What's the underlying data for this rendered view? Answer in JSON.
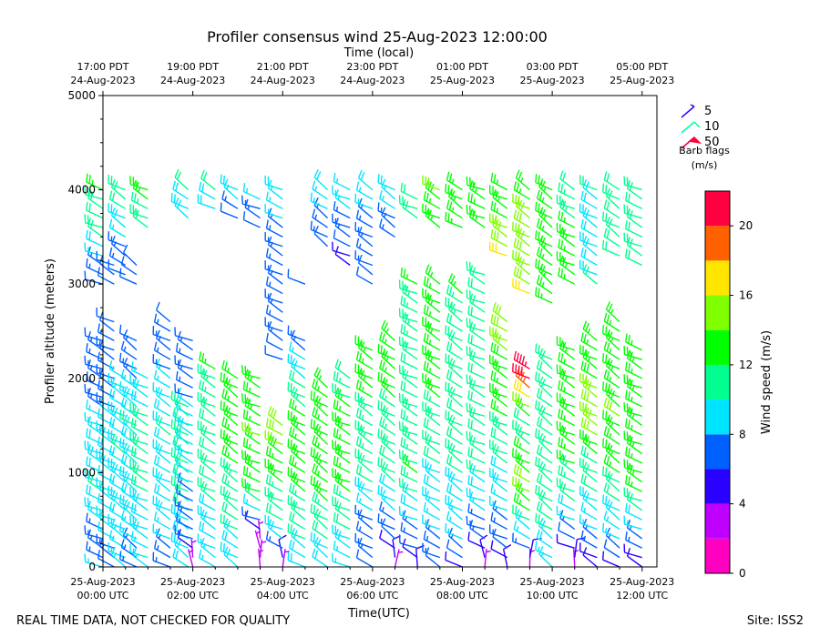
{
  "chart_data": {
    "type": "barbs",
    "title": "Profiler consensus wind 25-Aug-2023 12:00:00",
    "top_axis_label": "Time (local)",
    "xlabel": "Time(UTC)",
    "ylabel": "Profiler altitude (meters)",
    "ylim": [
      0,
      5000
    ],
    "xlim_hours": [
      0,
      12.33
    ],
    "y_ticks": [
      "0",
      "1000",
      "2000",
      "3000",
      "4000",
      "5000"
    ],
    "y_tick_values": [
      0,
      1000,
      2000,
      3000,
      4000,
      5000
    ],
    "x_ticks": [
      {
        "hour": 0,
        "line1": "25-Aug-2023",
        "line2": "00:00 UTC"
      },
      {
        "hour": 2,
        "line1": "25-Aug-2023",
        "line2": "02:00 UTC"
      },
      {
        "hour": 4,
        "line1": "25-Aug-2023",
        "line2": "04:00 UTC"
      },
      {
        "hour": 6,
        "line1": "25-Aug-2023",
        "line2": "06:00 UTC"
      },
      {
        "hour": 8,
        "line1": "25-Aug-2023",
        "line2": "08:00 UTC"
      },
      {
        "hour": 10,
        "line1": "25-Aug-2023",
        "line2": "10:00 UTC"
      },
      {
        "hour": 12,
        "line1": "25-Aug-2023",
        "line2": "12:00 UTC"
      }
    ],
    "top_ticks": [
      {
        "hour": 0,
        "line1": "17:00 PDT",
        "line2": "24-Aug-2023"
      },
      {
        "hour": 2,
        "line1": "19:00 PDT",
        "line2": "24-Aug-2023"
      },
      {
        "hour": 4,
        "line1": "21:00 PDT",
        "line2": "24-Aug-2023"
      },
      {
        "hour": 6,
        "line1": "23:00 PDT",
        "line2": "24-Aug-2023"
      },
      {
        "hour": 8,
        "line1": "01:00 PDT",
        "line2": "25-Aug-2023"
      },
      {
        "hour": 10,
        "line1": "03:00 PDT",
        "line2": "25-Aug-2023"
      },
      {
        "hour": 12,
        "line1": "05:00 PDT",
        "line2": "25-Aug-2023"
      }
    ],
    "barb_legend": {
      "title_line1": "Barb flags",
      "title_line2": "(m/s)",
      "entries": [
        {
          "label": "5",
          "color": "#2a00ff"
        },
        {
          "label": "10",
          "color": "#00ffa0"
        },
        {
          "label": "50",
          "color": "#ff0040"
        }
      ]
    },
    "colorbar": {
      "label": "Wind speed (m/s)",
      "range": [
        0,
        22
      ],
      "ticks": [
        "0",
        "4",
        "8",
        "12",
        "16",
        "20"
      ],
      "tick_values": [
        0,
        4,
        8,
        12,
        16,
        20
      ],
      "colors": [
        "#ff00c0",
        "#c000ff",
        "#2a00ff",
        "#0060ff",
        "#00e5ff",
        "#00ff90",
        "#00ff00",
        "#80ff00",
        "#ffe500",
        "#ff6000",
        "#ff0040"
      ]
    },
    "profiles": [
      {
        "hour": 0.0,
        "top": 4000,
        "low": [
          [
            0,
            8
          ],
          [
            250,
            7
          ],
          [
            800,
            10
          ],
          [
            1200,
            9
          ],
          [
            2400,
            6
          ]
        ],
        "mid": [
          [
            3000,
            6
          ],
          [
            3500,
            10
          ],
          [
            4000,
            12
          ]
        ]
      },
      {
        "hour": 0.25,
        "top": 3200,
        "low": [
          [
            0,
            6
          ],
          [
            300,
            8
          ],
          [
            1200,
            9
          ],
          [
            2000,
            7
          ],
          [
            2600,
            6
          ]
        ],
        "mid": [
          [
            3000,
            6
          ]
        ]
      },
      {
        "hour": 0.5,
        "top": 4000,
        "low": [
          [
            0,
            8
          ],
          [
            600,
            9
          ],
          [
            1200,
            10
          ],
          [
            2000,
            8
          ]
        ],
        "mid": [
          [
            3100,
            6
          ],
          [
            3800,
            10
          ]
        ]
      },
      {
        "hour": 0.75,
        "top": 3200,
        "low": [
          [
            0,
            7
          ],
          [
            500,
            9
          ],
          [
            1500,
            10
          ],
          [
            2400,
            6
          ]
        ],
        "mid": [
          [
            3000,
            6
          ]
        ]
      },
      {
        "hour": 1.0,
        "top": 4000,
        "low": [
          [
            0,
            8
          ],
          [
            800,
            10
          ],
          [
            1600,
            10
          ],
          [
            2000,
            8
          ]
        ],
        "mid": [
          [
            3600,
            11
          ],
          [
            3900,
            12
          ]
        ]
      },
      {
        "hour": 1.5,
        "top": 2800,
        "low": [
          [
            0,
            7
          ],
          [
            500,
            9
          ],
          [
            1400,
            10
          ],
          [
            2600,
            6
          ]
        ],
        "mid": []
      },
      {
        "hour": 1.9,
        "top": 4000,
        "low": [
          [
            0,
            9
          ],
          [
            600,
            10
          ],
          [
            1700,
            10
          ]
        ],
        "mid": [
          [
            3700,
            9
          ],
          [
            4000,
            10
          ]
        ]
      },
      {
        "hour": 2.0,
        "top": 2800,
        "low": [
          [
            0,
            2
          ],
          [
            300,
            7
          ],
          [
            1400,
            9
          ],
          [
            2400,
            6
          ]
        ],
        "mid": []
      },
      {
        "hour": 2.5,
        "top": 4000,
        "low": [
          [
            0,
            8
          ],
          [
            700,
            10
          ],
          [
            1500,
            11
          ],
          [
            2100,
            12
          ]
        ],
        "mid": [
          [
            3800,
            9
          ],
          [
            4000,
            10
          ]
        ]
      },
      {
        "hour": 3.0,
        "top": 4000,
        "low": [
          [
            0,
            9
          ],
          [
            700,
            11
          ],
          [
            1500,
            13
          ],
          [
            2000,
            12
          ]
        ],
        "mid": [
          [
            3700,
            6
          ],
          [
            4000,
            9
          ]
        ]
      },
      {
        "hour": 3.5,
        "top": 3900,
        "low": [
          [
            0,
            3
          ],
          [
            200,
            2
          ],
          [
            800,
            12
          ],
          [
            1400,
            14
          ],
          [
            2000,
            12
          ]
        ],
        "mid": [
          [
            3600,
            6
          ],
          [
            3900,
            8
          ]
        ]
      },
      {
        "hour": 4.0,
        "top": 4000,
        "low": [
          [
            0,
            2
          ],
          [
            300,
            9
          ],
          [
            1000,
            13
          ],
          [
            1500,
            15
          ]
        ],
        "mid": [
          [
            2200,
            6
          ],
          [
            2700,
            7
          ],
          [
            3400,
            7
          ],
          [
            4000,
            9
          ]
        ]
      },
      {
        "hour": 4.5,
        "top": 3000,
        "low": [
          [
            0,
            9
          ],
          [
            800,
            12
          ],
          [
            1600,
            12
          ],
          [
            2400,
            7
          ]
        ],
        "mid": [
          [
            3000,
            6
          ]
        ]
      },
      {
        "hour": 5.0,
        "top": 4000,
        "low": [
          [
            0,
            9
          ],
          [
            700,
            12
          ],
          [
            1500,
            13
          ],
          [
            1900,
            13
          ]
        ],
        "mid": [
          [
            3400,
            6
          ],
          [
            4000,
            9
          ]
        ]
      },
      {
        "hour": 5.5,
        "top": 4000,
        "low": [
          [
            0,
            8
          ],
          [
            800,
            12
          ],
          [
            1500,
            13
          ],
          [
            2000,
            11
          ]
        ],
        "mid": [
          [
            3200,
            5
          ],
          [
            3800,
            8
          ]
        ]
      },
      {
        "hour": 6.0,
        "top": 4000,
        "low": [
          [
            0,
            6
          ],
          [
            400,
            7
          ],
          [
            1000,
            11
          ],
          [
            1800,
            12
          ],
          [
            2300,
            12
          ]
        ],
        "mid": [
          [
            3000,
            6
          ],
          [
            3600,
            7
          ],
          [
            4000,
            9
          ]
        ]
      },
      {
        "hour": 6.5,
        "top": 4000,
        "low": [
          [
            0,
            3
          ],
          [
            300,
            6
          ],
          [
            1000,
            11
          ],
          [
            1800,
            12
          ],
          [
            2400,
            12
          ]
        ],
        "mid": [
          [
            3500,
            7
          ],
          [
            4000,
            9
          ]
        ]
      },
      {
        "hour": 7.0,
        "top": 3900,
        "low": [
          [
            0,
            4
          ],
          [
            300,
            7
          ],
          [
            1000,
            12
          ],
          [
            2000,
            11
          ],
          [
            3000,
            12
          ]
        ],
        "mid": [
          [
            3700,
            11
          ]
        ]
      },
      {
        "hour": 7.5,
        "top": 4000,
        "low": [
          [
            0,
            6
          ],
          [
            400,
            8
          ],
          [
            1400,
            11
          ],
          [
            2200,
            13
          ],
          [
            3000,
            13
          ]
        ],
        "mid": [
          [
            3600,
            13
          ],
          [
            4000,
            14
          ]
        ]
      },
      {
        "hour": 8.0,
        "top": 4000,
        "low": [
          [
            0,
            5
          ],
          [
            300,
            8
          ],
          [
            1000,
            10
          ],
          [
            2000,
            10
          ],
          [
            2900,
            12
          ]
        ],
        "mid": [
          [
            3600,
            13
          ],
          [
            4000,
            13
          ]
        ]
      },
      {
        "hour": 8.5,
        "top": 4000,
        "low": [
          [
            0,
            3
          ],
          [
            300,
            7
          ],
          [
            1200,
            11
          ],
          [
            2300,
            10
          ],
          [
            3100,
            11
          ]
        ],
        "mid": [
          [
            3600,
            12
          ],
          [
            4000,
            12
          ]
        ]
      },
      {
        "hour": 9.0,
        "top": 4000,
        "low": [
          [
            0,
            4
          ],
          [
            200,
            6
          ],
          [
            800,
            9
          ],
          [
            1600,
            12
          ],
          [
            2600,
            15
          ]
        ],
        "mid": [
          [
            3300,
            16
          ],
          [
            3900,
            12
          ]
        ]
      },
      {
        "hour": 9.5,
        "top": 4000,
        "low": [
          [
            0,
            3
          ],
          [
            300,
            8
          ],
          [
            800,
            15
          ],
          [
            1500,
            10
          ],
          [
            2100,
            22
          ]
        ],
        "mid": [
          [
            2900,
            16
          ],
          [
            3600,
            15
          ],
          [
            4000,
            13
          ]
        ]
      },
      {
        "hour": 10.0,
        "top": 4000,
        "low": [
          [
            0,
            8
          ],
          [
            400,
            10
          ],
          [
            1000,
            11
          ],
          [
            1600,
            11
          ],
          [
            2200,
            10
          ]
        ],
        "mid": [
          [
            2800,
            13
          ],
          [
            3500,
            13
          ],
          [
            4000,
            13
          ]
        ]
      },
      {
        "hour": 10.5,
        "top": 4000,
        "low": [
          [
            0,
            3
          ],
          [
            300,
            6
          ],
          [
            800,
            11
          ],
          [
            1400,
            13
          ],
          [
            2300,
            12
          ]
        ],
        "mid": [
          [
            3000,
            12
          ],
          [
            3600,
            12
          ],
          [
            4000,
            11
          ]
        ]
      },
      {
        "hour": 11.0,
        "top": 4000,
        "low": [
          [
            0,
            5
          ],
          [
            400,
            8
          ],
          [
            1000,
            11
          ],
          [
            1500,
            15
          ],
          [
            2400,
            13
          ]
        ],
        "mid": [
          [
            3000,
            10
          ],
          [
            3600,
            9
          ],
          [
            4000,
            10
          ]
        ]
      },
      {
        "hour": 11.5,
        "top": 4000,
        "low": [
          [
            0,
            5
          ],
          [
            300,
            8
          ],
          [
            1000,
            12
          ],
          [
            1600,
            14
          ],
          [
            2600,
            13
          ]
        ],
        "mid": [
          [
            3300,
            10
          ],
          [
            4000,
            10
          ]
        ]
      },
      {
        "hour": 12.0,
        "top": 4000,
        "low": [
          [
            0,
            5
          ],
          [
            300,
            7
          ],
          [
            800,
            12
          ],
          [
            1500,
            13
          ],
          [
            2300,
            12
          ]
        ],
        "mid": [
          [
            3200,
            10
          ],
          [
            3800,
            11
          ]
        ]
      }
    ]
  },
  "footer": {
    "left_note": "REAL TIME DATA, NOT CHECKED FOR QUALITY",
    "site": "Site: ISS2"
  }
}
